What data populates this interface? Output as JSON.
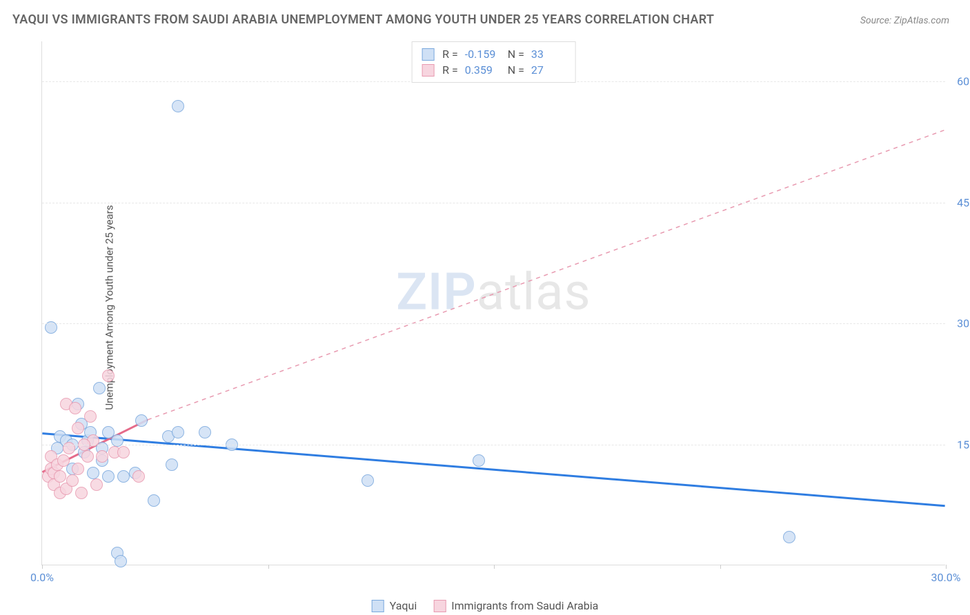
{
  "title": "YAQUI VS IMMIGRANTS FROM SAUDI ARABIA UNEMPLOYMENT AMONG YOUTH UNDER 25 YEARS CORRELATION CHART",
  "source": "Source: ZipAtlas.com",
  "yaxis_label": "Unemployment Among Youth under 25 years",
  "watermark_zip": "ZIP",
  "watermark_atlas": "atlas",
  "chart": {
    "type": "scatter",
    "background_color": "#ffffff",
    "grid_color": "#e8e8e8",
    "axis_color": "#dddddd",
    "tick_label_color": "#5b8fd6",
    "x": {
      "min": 0,
      "max": 30,
      "ticks": [
        0,
        7.5,
        15,
        22.5,
        30
      ],
      "tick_labels_shown": {
        "0": "0.0%",
        "30": "30.0%"
      }
    },
    "y": {
      "min": 0,
      "max": 65,
      "ticks": [
        15,
        30,
        45,
        60
      ],
      "tick_labels": [
        "15.0%",
        "30.0%",
        "45.0%",
        "60.0%"
      ]
    },
    "series": [
      {
        "name": "Yaqui",
        "marker_color_fill": "#cfe0f5",
        "marker_color_stroke": "#7aa8dd",
        "marker_radius": 9,
        "trend_color": "#2f7de1",
        "trend_width": 3,
        "trend_dash": "none",
        "trend_start": {
          "x": 0,
          "y": 16.3
        },
        "trend_end": {
          "x": 30,
          "y": 7.3
        },
        "r_value": "-0.159",
        "n_value": "33",
        "points": [
          {
            "x": 0.3,
            "y": 29.5
          },
          {
            "x": 0.5,
            "y": 14.5
          },
          {
            "x": 0.6,
            "y": 16.0
          },
          {
            "x": 0.8,
            "y": 15.5
          },
          {
            "x": 1.0,
            "y": 12.0
          },
          {
            "x": 1.0,
            "y": 15.0
          },
          {
            "x": 1.2,
            "y": 20.0
          },
          {
            "x": 1.3,
            "y": 17.5
          },
          {
            "x": 1.4,
            "y": 14.0
          },
          {
            "x": 1.5,
            "y": 15.5
          },
          {
            "x": 1.6,
            "y": 16.5
          },
          {
            "x": 1.7,
            "y": 11.5
          },
          {
            "x": 1.9,
            "y": 22.0
          },
          {
            "x": 2.0,
            "y": 14.5
          },
          {
            "x": 2.2,
            "y": 16.5
          },
          {
            "x": 2.2,
            "y": 11.0
          },
          {
            "x": 2.5,
            "y": 15.5
          },
          {
            "x": 2.5,
            "y": 1.5
          },
          {
            "x": 2.6,
            "y": 0.5
          },
          {
            "x": 2.7,
            "y": 11.0
          },
          {
            "x": 3.1,
            "y": 11.5
          },
          {
            "x": 3.3,
            "y": 18.0
          },
          {
            "x": 3.7,
            "y": 8.0
          },
          {
            "x": 4.2,
            "y": 16.0
          },
          {
            "x": 4.3,
            "y": 12.5
          },
          {
            "x": 4.5,
            "y": 57.0
          },
          {
            "x": 4.5,
            "y": 16.5
          },
          {
            "x": 5.4,
            "y": 16.5
          },
          {
            "x": 6.3,
            "y": 15.0
          },
          {
            "x": 10.8,
            "y": 10.5
          },
          {
            "x": 14.5,
            "y": 13.0
          },
          {
            "x": 24.8,
            "y": 3.5
          },
          {
            "x": 2.0,
            "y": 13.0
          }
        ]
      },
      {
        "name": "Immigrants from Saudi Arabia",
        "marker_color_fill": "#f7d5df",
        "marker_color_stroke": "#e89ab0",
        "marker_radius": 9,
        "trend_color": "#e56b8a",
        "trend_width": 3,
        "trend_dash": "none",
        "trend_start": {
          "x": 0,
          "y": 11.5
        },
        "trend_end": {
          "x": 3.5,
          "y": 18.0
        },
        "extrap_color": "#e89ab0",
        "extrap_dash": "6,6",
        "extrap_start": {
          "x": 3.5,
          "y": 18.0
        },
        "extrap_end": {
          "x": 30,
          "y": 54.0
        },
        "r_value": "0.359",
        "n_value": "27",
        "points": [
          {
            "x": 0.2,
            "y": 11.0
          },
          {
            "x": 0.3,
            "y": 12.0
          },
          {
            "x": 0.3,
            "y": 13.5
          },
          {
            "x": 0.4,
            "y": 11.5
          },
          {
            "x": 0.4,
            "y": 10.0
          },
          {
            "x": 0.5,
            "y": 12.5
          },
          {
            "x": 0.6,
            "y": 9.0
          },
          {
            "x": 0.6,
            "y": 11.0
          },
          {
            "x": 0.7,
            "y": 13.0
          },
          {
            "x": 0.8,
            "y": 20.0
          },
          {
            "x": 0.8,
            "y": 9.5
          },
          {
            "x": 0.9,
            "y": 14.5
          },
          {
            "x": 1.0,
            "y": 10.5
          },
          {
            "x": 1.1,
            "y": 19.5
          },
          {
            "x": 1.2,
            "y": 17.0
          },
          {
            "x": 1.2,
            "y": 12.0
          },
          {
            "x": 1.3,
            "y": 9.0
          },
          {
            "x": 1.5,
            "y": 13.5
          },
          {
            "x": 1.6,
            "y": 18.5
          },
          {
            "x": 1.7,
            "y": 15.5
          },
          {
            "x": 1.8,
            "y": 10.0
          },
          {
            "x": 2.0,
            "y": 13.5
          },
          {
            "x": 2.2,
            "y": 23.5
          },
          {
            "x": 2.4,
            "y": 14.0
          },
          {
            "x": 2.7,
            "y": 14.0
          },
          {
            "x": 3.2,
            "y": 11.0
          },
          {
            "x": 1.4,
            "y": 15.0
          }
        ]
      }
    ]
  },
  "legend_top": {
    "r_label": "R =",
    "n_label": "N ="
  },
  "legend_bottom": {
    "items": [
      "Yaqui",
      "Immigrants from Saudi Arabia"
    ]
  }
}
